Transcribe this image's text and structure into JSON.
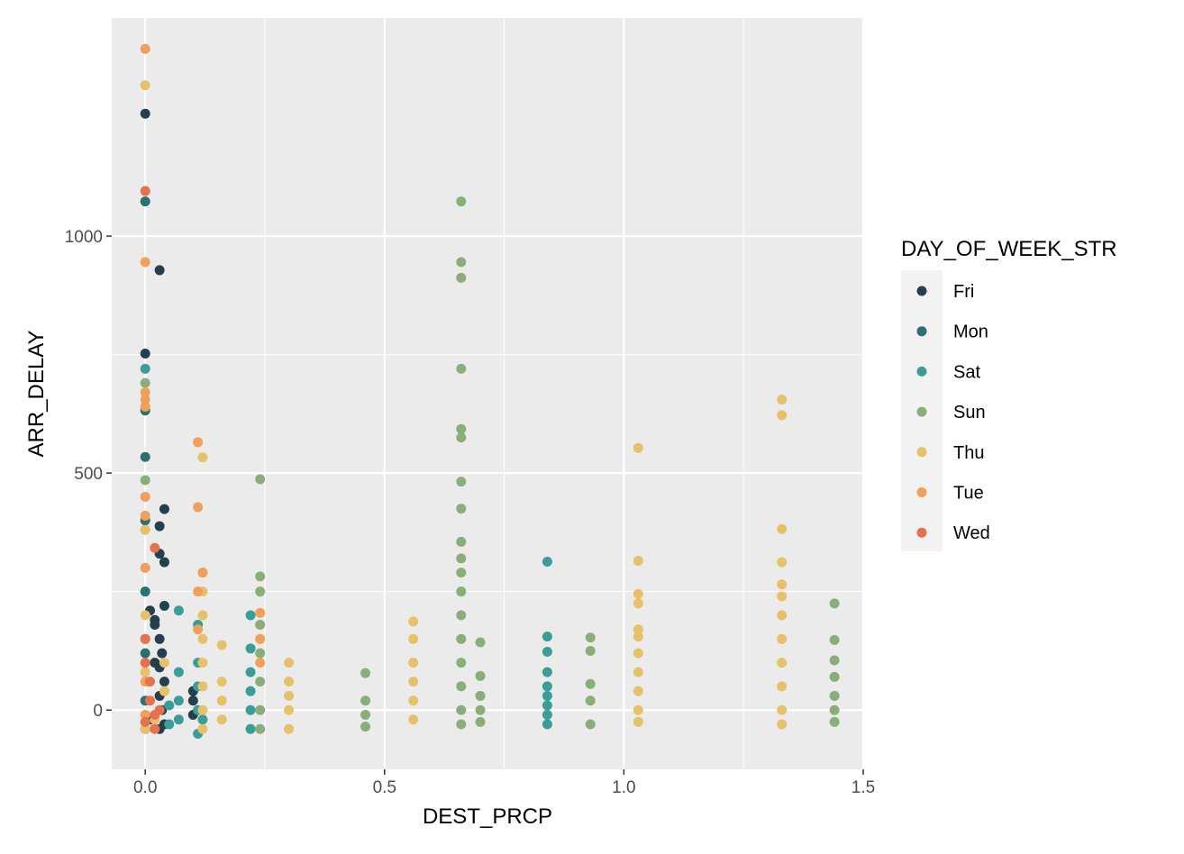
{
  "chart_data": {
    "type": "scatter",
    "title": "",
    "xlabel": "DEST_PRCP",
    "ylabel": "ARR_DELAY",
    "xlim": [
      -0.07,
      1.5
    ],
    "ylim": [
      -125,
      1460
    ],
    "x_ticks": [
      "0.0",
      "0.5",
      "1.0",
      "1.5"
    ],
    "x_tick_values": [
      0.0,
      0.5,
      1.0,
      1.5
    ],
    "y_ticks": [
      "0",
      "500",
      "1000"
    ],
    "y_tick_values": [
      0,
      500,
      1000
    ],
    "grid": true,
    "panel_background": "#ebebeb",
    "legend": {
      "title": "DAY_OF_WEEK_STR",
      "position": "right"
    },
    "series": [
      {
        "name": "Fri",
        "color": "#24404f",
        "points": [
          [
            0.0,
            1258
          ],
          [
            0.0,
            752
          ],
          [
            0.03,
            928
          ],
          [
            0.04,
            424
          ],
          [
            0.03,
            388
          ],
          [
            0.04,
            312
          ],
          [
            0.03,
            330
          ],
          [
            0.01,
            210
          ],
          [
            0.02,
            180
          ],
          [
            0.03,
            150
          ],
          [
            0.035,
            120
          ],
          [
            0.03,
            90
          ],
          [
            0.04,
            60
          ],
          [
            0.03,
            30
          ],
          [
            0.035,
            0
          ],
          [
            0.04,
            -30
          ],
          [
            0.03,
            -40
          ],
          [
            0.02,
            190
          ],
          [
            0.04,
            220
          ],
          [
            0.01,
            -20
          ],
          [
            0.1,
            20
          ],
          [
            0.1,
            -10
          ],
          [
            0.1,
            40
          ],
          [
            0.02,
            100
          ]
        ]
      },
      {
        "name": "Mon",
        "color": "#2d7070",
        "points": [
          [
            0.0,
            1073
          ],
          [
            0.0,
            632
          ],
          [
            0.0,
            534
          ],
          [
            0.0,
            400
          ],
          [
            0.0,
            250
          ],
          [
            0.0,
            120
          ],
          [
            0.0,
            20
          ],
          [
            0.0,
            -40
          ]
        ]
      },
      {
        "name": "Sat",
        "color": "#3a9e96",
        "points": [
          [
            0.0,
            720
          ],
          [
            0.84,
            313
          ],
          [
            0.84,
            155
          ],
          [
            0.84,
            123
          ],
          [
            0.84,
            80
          ],
          [
            0.84,
            50
          ],
          [
            0.84,
            30
          ],
          [
            0.84,
            10
          ],
          [
            0.84,
            -10
          ],
          [
            0.84,
            -30
          ],
          [
            0.22,
            200
          ],
          [
            0.22,
            130
          ],
          [
            0.22,
            80
          ],
          [
            0.22,
            40
          ],
          [
            0.22,
            0
          ],
          [
            0.22,
            -40
          ],
          [
            0.11,
            180
          ],
          [
            0.11,
            100
          ],
          [
            0.11,
            50
          ],
          [
            0.11,
            0
          ],
          [
            0.11,
            -50
          ],
          [
            0.07,
            210
          ],
          [
            0.07,
            80
          ],
          [
            0.07,
            20
          ],
          [
            0.07,
            -20
          ],
          [
            0.05,
            10
          ],
          [
            0.05,
            -30
          ],
          [
            0.12,
            -20
          ]
        ]
      },
      {
        "name": "Sun",
        "color": "#8aad7a",
        "points": [
          [
            0.0,
            690
          ],
          [
            0.0,
            485
          ],
          [
            0.24,
            487
          ],
          [
            0.24,
            282
          ],
          [
            0.24,
            250
          ],
          [
            0.24,
            180
          ],
          [
            0.24,
            120
          ],
          [
            0.24,
            60
          ],
          [
            0.24,
            0
          ],
          [
            0.24,
            -40
          ],
          [
            0.66,
            1073
          ],
          [
            0.66,
            945
          ],
          [
            0.66,
            912
          ],
          [
            0.66,
            720
          ],
          [
            0.66,
            593
          ],
          [
            0.66,
            575
          ],
          [
            0.66,
            482
          ],
          [
            0.66,
            425
          ],
          [
            0.66,
            355
          ],
          [
            0.66,
            320
          ],
          [
            0.66,
            290
          ],
          [
            0.66,
            250
          ],
          [
            0.66,
            200
          ],
          [
            0.66,
            150
          ],
          [
            0.66,
            100
          ],
          [
            0.66,
            50
          ],
          [
            0.66,
            0
          ],
          [
            0.66,
            -30
          ],
          [
            0.7,
            143
          ],
          [
            0.7,
            72
          ],
          [
            0.7,
            30
          ],
          [
            0.7,
            0
          ],
          [
            0.7,
            -25
          ],
          [
            0.46,
            78
          ],
          [
            0.46,
            20
          ],
          [
            0.46,
            -10
          ],
          [
            0.46,
            -35
          ],
          [
            0.93,
            153
          ],
          [
            0.93,
            125
          ],
          [
            0.93,
            55
          ],
          [
            0.93,
            20
          ],
          [
            0.93,
            -30
          ],
          [
            1.44,
            225
          ],
          [
            1.44,
            148
          ],
          [
            1.44,
            105
          ],
          [
            1.44,
            70
          ],
          [
            1.44,
            30
          ],
          [
            1.44,
            0
          ],
          [
            1.44,
            -25
          ]
        ]
      },
      {
        "name": "Thu",
        "color": "#e7c06a",
        "points": [
          [
            0.0,
            1318
          ],
          [
            0.12,
            533
          ],
          [
            0.12,
            290
          ],
          [
            0.12,
            250
          ],
          [
            0.12,
            200
          ],
          [
            0.12,
            150
          ],
          [
            0.12,
            100
          ],
          [
            0.12,
            50
          ],
          [
            0.12,
            0
          ],
          [
            0.12,
            -40
          ],
          [
            0.16,
            137
          ],
          [
            0.16,
            60
          ],
          [
            0.16,
            20
          ],
          [
            0.16,
            -20
          ],
          [
            0.3,
            100
          ],
          [
            0.3,
            60
          ],
          [
            0.3,
            30
          ],
          [
            0.3,
            0
          ],
          [
            0.3,
            -40
          ],
          [
            0.56,
            187
          ],
          [
            0.56,
            150
          ],
          [
            0.56,
            100
          ],
          [
            0.56,
            60
          ],
          [
            0.56,
            20
          ],
          [
            0.56,
            -20
          ],
          [
            1.03,
            553
          ],
          [
            1.03,
            315
          ],
          [
            1.03,
            245
          ],
          [
            1.03,
            225
          ],
          [
            1.03,
            170
          ],
          [
            1.03,
            155
          ],
          [
            1.03,
            120
          ],
          [
            1.03,
            80
          ],
          [
            1.03,
            40
          ],
          [
            1.03,
            0
          ],
          [
            1.03,
            -25
          ],
          [
            1.33,
            655
          ],
          [
            1.33,
            622
          ],
          [
            1.33,
            382
          ],
          [
            1.33,
            312
          ],
          [
            1.33,
            265
          ],
          [
            1.33,
            240
          ],
          [
            1.33,
            200
          ],
          [
            1.33,
            150
          ],
          [
            1.33,
            100
          ],
          [
            1.33,
            50
          ],
          [
            1.33,
            0
          ],
          [
            1.33,
            -30
          ],
          [
            0.0,
            380
          ],
          [
            0.0,
            200
          ],
          [
            0.0,
            80
          ],
          [
            0.0,
            -40
          ],
          [
            0.02,
            -20
          ],
          [
            0.04,
            100
          ],
          [
            0.04,
            40
          ]
        ]
      },
      {
        "name": "Tue",
        "color": "#f0a05a",
        "points": [
          [
            0.0,
            1395
          ],
          [
            0.0,
            945
          ],
          [
            0.0,
            670
          ],
          [
            0.0,
            655
          ],
          [
            0.0,
            640
          ],
          [
            0.0,
            450
          ],
          [
            0.0,
            410
          ],
          [
            0.0,
            300
          ],
          [
            0.0,
            150
          ],
          [
            0.0,
            60
          ],
          [
            0.0,
            -10
          ],
          [
            0.11,
            565
          ],
          [
            0.11,
            428
          ],
          [
            0.11,
            250
          ],
          [
            0.11,
            170
          ],
          [
            0.24,
            205
          ],
          [
            0.24,
            150
          ],
          [
            0.24,
            100
          ],
          [
            0.12,
            290
          ]
        ]
      },
      {
        "name": "Wed",
        "color": "#e5714f",
        "points": [
          [
            0.0,
            1095
          ],
          [
            0.02,
            342
          ],
          [
            0.0,
            150
          ],
          [
            0.0,
            100
          ],
          [
            0.01,
            60
          ],
          [
            0.01,
            20
          ],
          [
            0.02,
            -10
          ],
          [
            0.02,
            -40
          ],
          [
            0.0,
            -25
          ],
          [
            0.03,
            0
          ]
        ]
      }
    ]
  }
}
